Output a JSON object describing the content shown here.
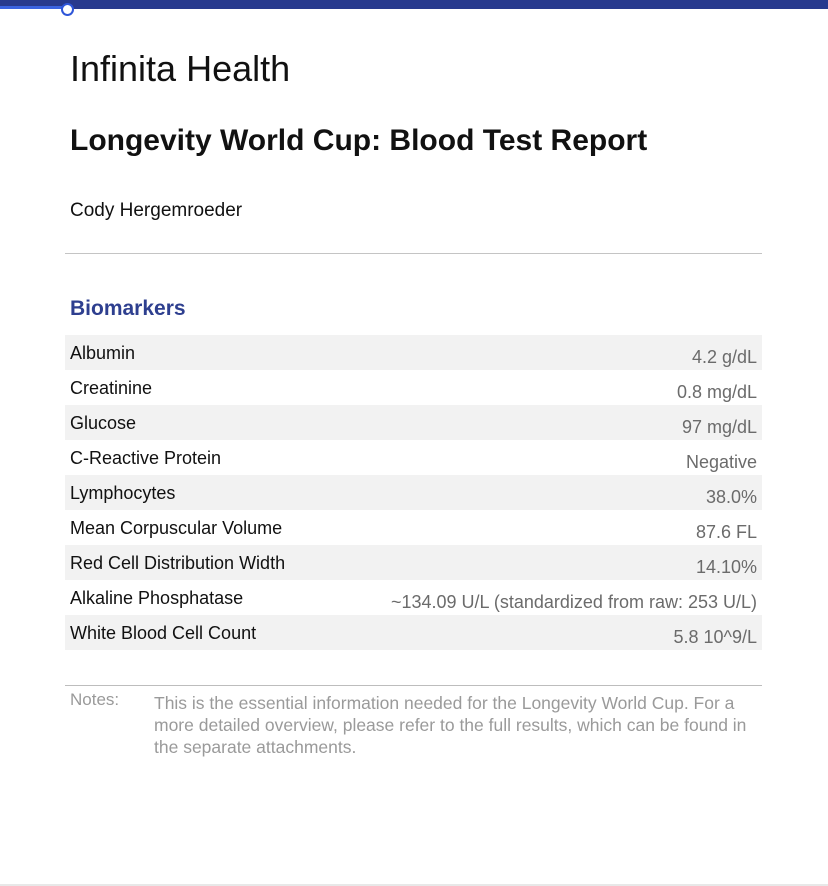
{
  "progress": {
    "fraction": 0.08,
    "bar_color": "#283a8e",
    "fill_color": "#3b63e0"
  },
  "header": {
    "org_name": "Infinita Health",
    "report_title": "Longevity World Cup: Blood Test Report",
    "patient_name": "Cody Hergemroeder"
  },
  "biomarkers": {
    "section_title": "Biomarkers",
    "accent_color": "#2e3f8f",
    "rows": [
      {
        "name": "Albumin",
        "value": "4.2 g/dL"
      },
      {
        "name": "Creatinine",
        "value": "0.8 mg/dL"
      },
      {
        "name": "Glucose",
        "value": "97 mg/dL"
      },
      {
        "name": "C-Reactive Protein",
        "value": "Negative"
      },
      {
        "name": "Lymphocytes",
        "value": "38.0%"
      },
      {
        "name": "Mean Corpuscular Volume",
        "value": "87.6 FL"
      },
      {
        "name": "Red Cell Distribution Width",
        "value": "14.10%"
      },
      {
        "name": "Alkaline Phosphatase",
        "value": "~134.09 U/L (standardized from raw: 253 U/L)"
      },
      {
        "name": "White Blood Cell Count",
        "value": "5.8 10^9/L"
      }
    ]
  },
  "notes": {
    "label": "Notes:",
    "text": "This is the essential information needed for the Longevity World Cup. For a more detailed overview, please refer to the full results, which can be found in the separate attachments."
  }
}
